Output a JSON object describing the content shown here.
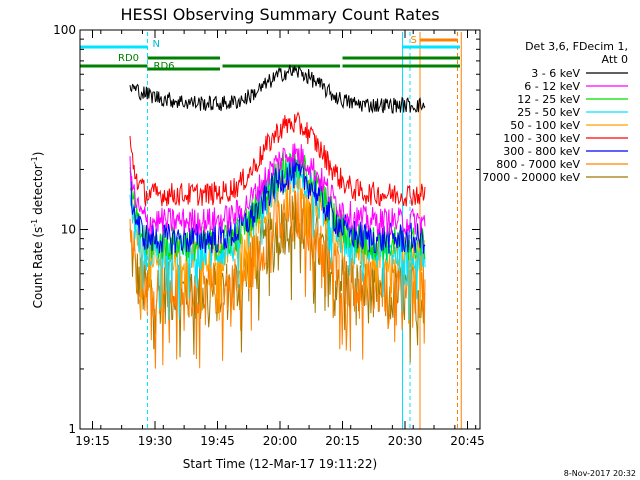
{
  "chart_data": {
    "type": "line",
    "title": "HESSI Observing Summary Count Rates",
    "xlabel": "Start Time (12-Mar-17 19:11:22)",
    "ylabel_main": "Count Rate (s",
    "ylabel_sup1": "-1",
    "ylabel_mid": " detector",
    "ylabel_sup2": "-1",
    "ylabel_end": ")",
    "y_scale": "log",
    "ylim": [
      1,
      100
    ],
    "xlim_minutes": [
      19.2,
      20.8
    ],
    "x_ticks": [
      {
        "label": "19:15",
        "t": 19.25
      },
      {
        "label": "19:30",
        "t": 19.5
      },
      {
        "label": "19:45",
        "t": 19.75
      },
      {
        "label": "20:00",
        "t": 20.0
      },
      {
        "label": "20:15",
        "t": 20.25
      },
      {
        "label": "20:30",
        "t": 20.5
      },
      {
        "label": "20:45",
        "t": 20.75
      }
    ],
    "y_ticks": [
      {
        "label": "1",
        "v": 1
      },
      {
        "label": "10",
        "v": 10
      },
      {
        "label": "100",
        "v": 100
      }
    ],
    "data_start": 19.4,
    "data_end": 20.58,
    "legend_header_1": "Det 3,6, FDecim 1,",
    "legend_header_2": "Att 0",
    "series": [
      {
        "name": "3 - 6 keV",
        "color": "#000000",
        "base": 42,
        "peak": 62,
        "noise": 0.04,
        "spike": 54
      },
      {
        "name": "6 - 12 keV",
        "color": "#ff00ff",
        "base": 11,
        "peak": 24,
        "noise": 0.07,
        "spike": 20
      },
      {
        "name": "12 - 25 keV",
        "color": "#00dd00",
        "base": 8.5,
        "peak": 21,
        "noise": 0.09,
        "spike": 18
      },
      {
        "name": "25 - 50 keV",
        "color": "#00e5ff",
        "base": 7.8,
        "peak": 19,
        "noise": 0.1,
        "spike": 16
      },
      {
        "name": "50 - 100 keV",
        "color": "#ffa000",
        "base": 7.5,
        "peak": 18,
        "noise": 0.1,
        "spike": 15
      },
      {
        "name": "100 - 300 keV",
        "color": "#ff0000",
        "base": 15,
        "peak": 34,
        "noise": 0.06,
        "spike": 27
      },
      {
        "name": "300 - 800 keV",
        "color": "#0000ff",
        "base": 9,
        "peak": 19,
        "noise": 0.08,
        "spike": 17
      },
      {
        "name": "800 - 7000 keV",
        "color": "#ff8000",
        "base": 5,
        "peak": 12,
        "noise": 0.14,
        "spike": 11
      },
      {
        "name": "7000 - 20000 keV",
        "color": "#a07800",
        "base": 4.8,
        "peak": 11,
        "noise": 0.16,
        "spike": 9
      }
    ],
    "bar_labels": {
      "n": "N",
      "rd0": "RD0",
      "rd6": "RD6",
      "s": "S"
    },
    "footer_date": "8-Nov-2017 20:32"
  }
}
